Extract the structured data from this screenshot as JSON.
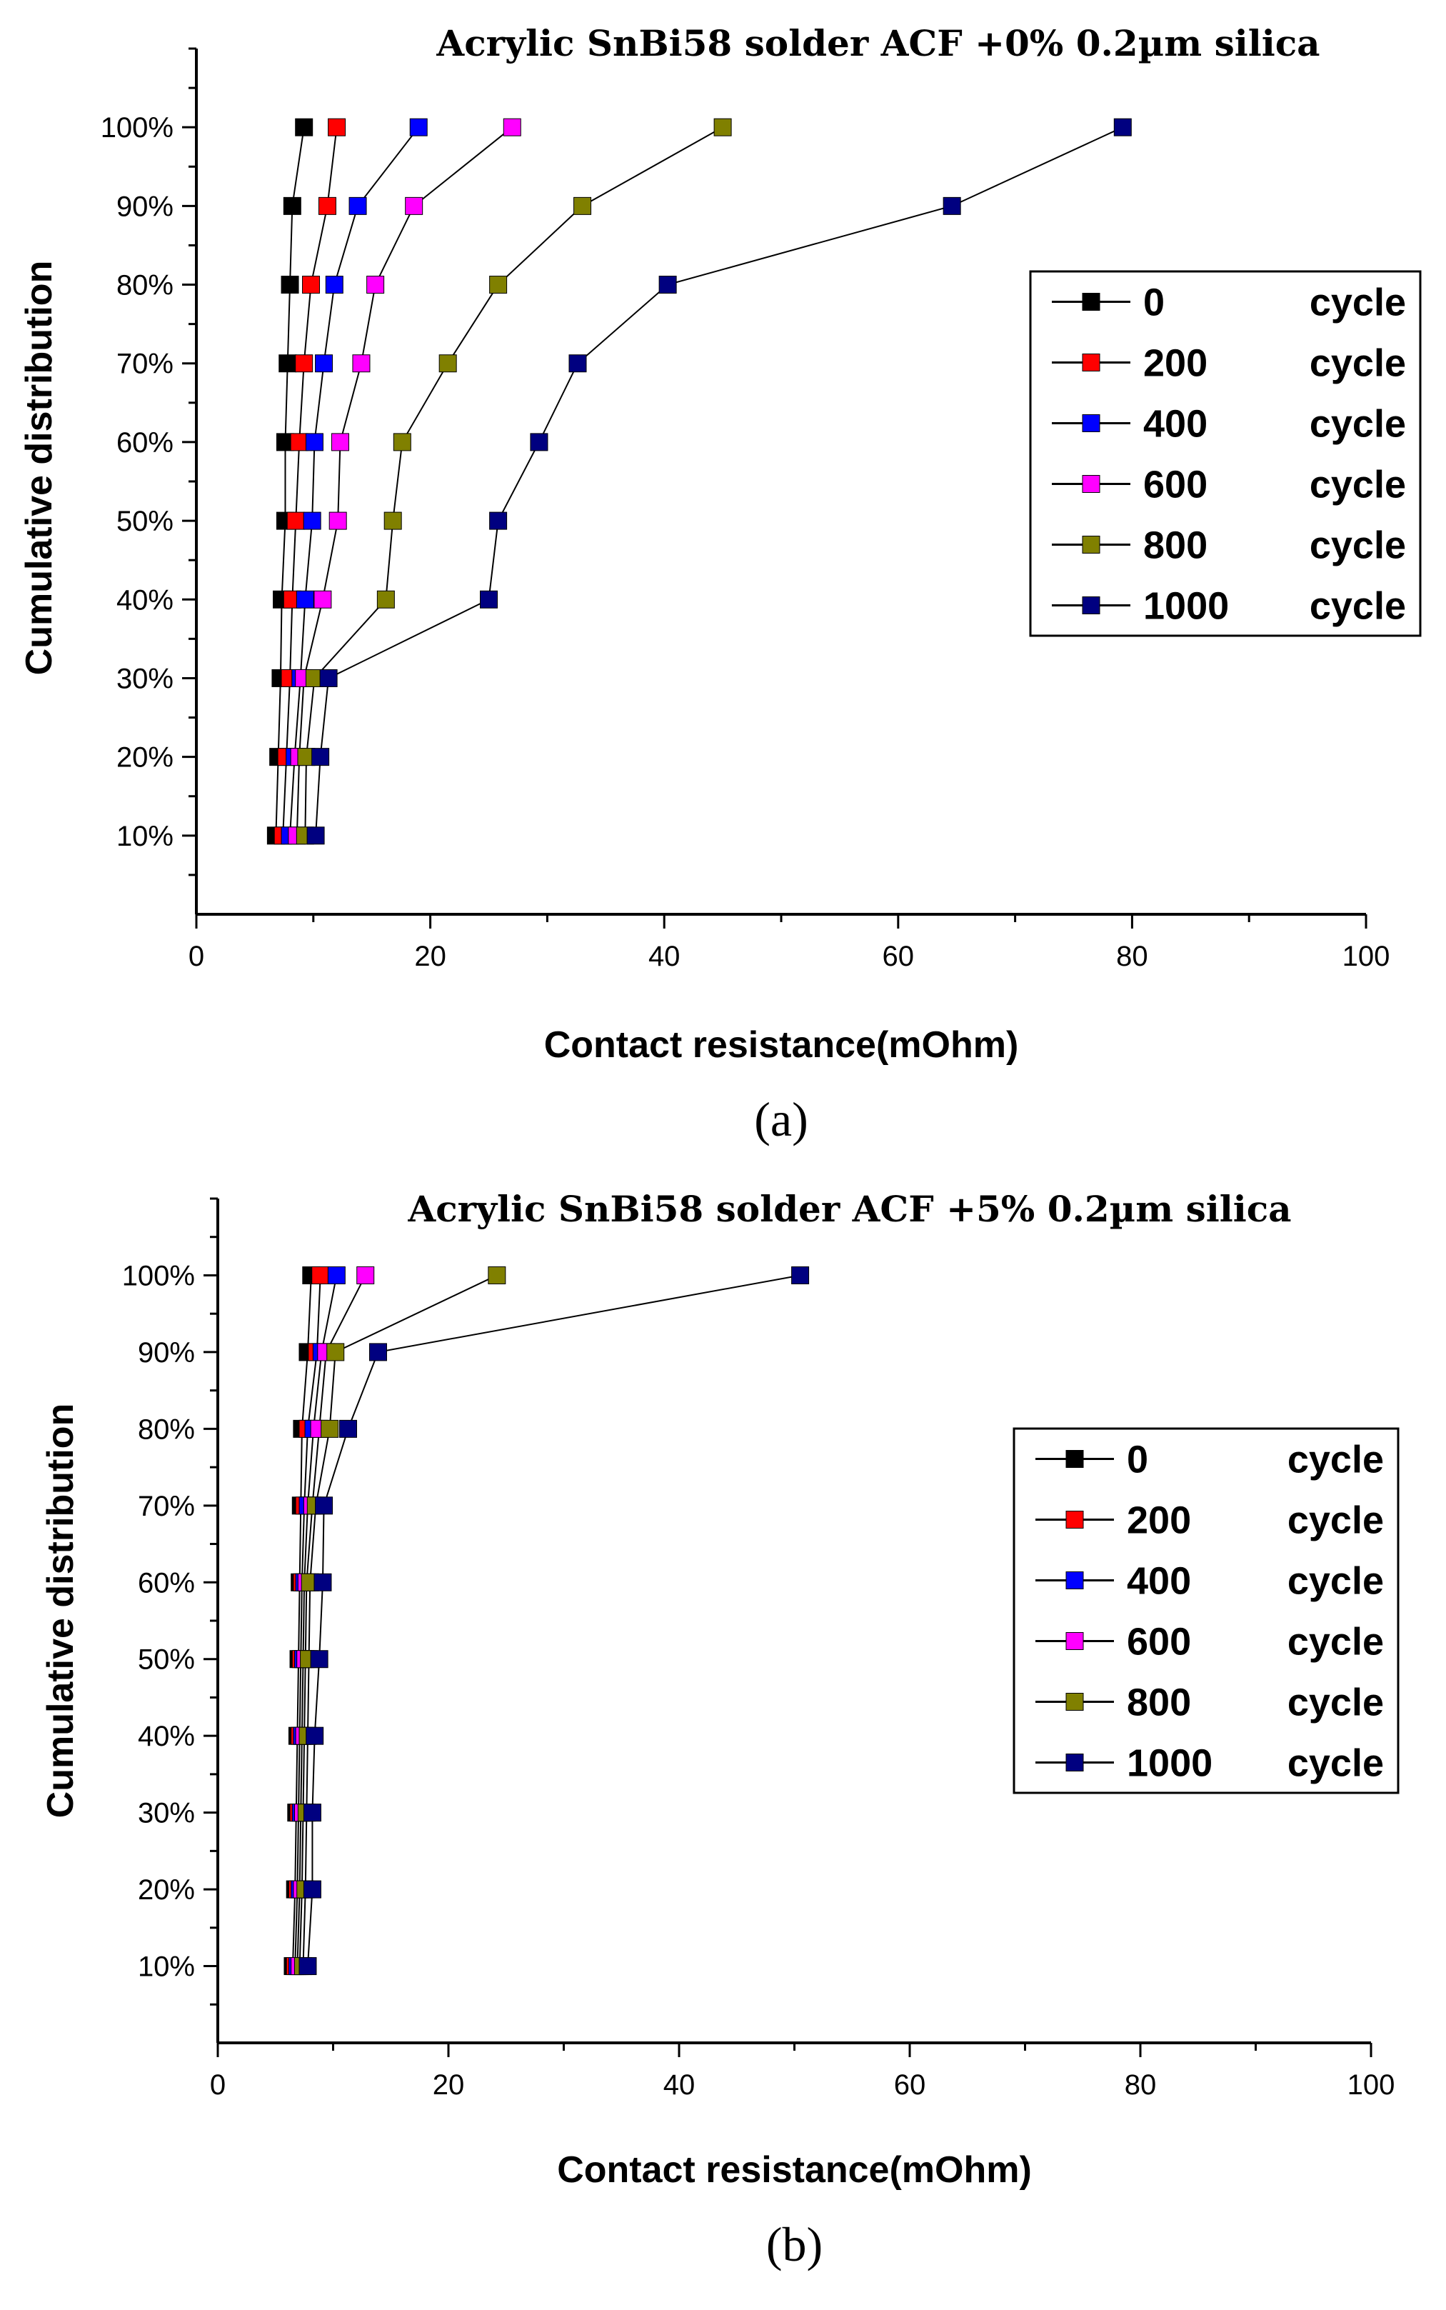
{
  "chart_data": [
    {
      "type": "line",
      "panel_label": "(a)",
      "title": "Acrylic SnBi58 solder ACF +0% 0.2µm silica",
      "xlabel": "Contact resistance(mOhm)",
      "ylabel": "Cumulative distribution",
      "xlim": [
        0,
        100
      ],
      "ylim": [
        0,
        110
      ],
      "xticks": [
        "0",
        "20",
        "40",
        "60",
        "80",
        "100"
      ],
      "yticks": [
        "10%",
        "20%",
        "30%",
        "40%",
        "50%",
        "60%",
        "70%",
        "80%",
        "90%",
        "100%"
      ],
      "legend_position": "right",
      "y": [
        10,
        20,
        30,
        40,
        50,
        60,
        70,
        80,
        90,
        100
      ],
      "series": [
        {
          "name": "0",
          "suffix": "cycle",
          "color": "#000000",
          "x": [
            6.8,
            7.0,
            7.2,
            7.3,
            7.6,
            7.6,
            7.8,
            8.0,
            8.2,
            9.2
          ]
        },
        {
          "name": "200",
          "suffix": "cycle",
          "color": "#ff0000",
          "x": [
            7.4,
            7.7,
            8.0,
            8.2,
            8.5,
            8.8,
            9.2,
            9.8,
            11.2,
            12.0
          ]
        },
        {
          "name": "400",
          "suffix": "cycle",
          "color": "#0000ff",
          "x": [
            8.0,
            8.4,
            8.9,
            9.3,
            9.9,
            10.1,
            10.9,
            11.8,
            13.8,
            19.0
          ]
        },
        {
          "name": "600",
          "suffix": "cycle",
          "color": "#ff00ff",
          "x": [
            8.6,
            8.8,
            9.2,
            10.8,
            12.1,
            12.3,
            14.1,
            15.3,
            18.6,
            27.0
          ]
        },
        {
          "name": "800",
          "suffix": "cycle",
          "color": "#808000",
          "x": [
            9.3,
            9.4,
            10.1,
            16.2,
            16.8,
            17.6,
            21.5,
            25.8,
            33.0,
            45.0
          ]
        },
        {
          "name": "1000",
          "suffix": "cycle",
          "color": "#000080",
          "x": [
            10.2,
            10.6,
            11.3,
            25.0,
            25.8,
            29.3,
            32.6,
            40.3,
            64.6,
            79.2
          ]
        }
      ]
    },
    {
      "type": "line",
      "panel_label": "(b)",
      "title": "Acrylic SnBi58 solder ACF +5% 0.2µm silica",
      "xlabel": "Contact resistance(mOhm)",
      "ylabel": "Cumulative distribution",
      "xlim": [
        0,
        100
      ],
      "ylim": [
        0,
        110
      ],
      "xticks": [
        "0",
        "20",
        "40",
        "60",
        "80",
        "100"
      ],
      "yticks": [
        "10%",
        "20%",
        "30%",
        "40%",
        "50%",
        "60%",
        "70%",
        "80%",
        "90%",
        "100%"
      ],
      "legend_position": "right",
      "y": [
        10,
        20,
        30,
        40,
        50,
        60,
        70,
        80,
        90,
        100
      ],
      "series": [
        {
          "name": "0",
          "suffix": "cycle",
          "color": "#000000",
          "x": [
            6.5,
            6.7,
            6.8,
            6.9,
            7.0,
            7.1,
            7.2,
            7.3,
            7.8,
            8.1
          ]
        },
        {
          "name": "200",
          "suffix": "cycle",
          "color": "#ff0000",
          "x": [
            6.7,
            6.9,
            7.0,
            7.1,
            7.2,
            7.3,
            7.5,
            7.8,
            8.6,
            8.9
          ]
        },
        {
          "name": "400",
          "suffix": "cycle",
          "color": "#0000ff",
          "x": [
            6.9,
            7.1,
            7.2,
            7.3,
            7.4,
            7.5,
            7.8,
            8.3,
            9.0,
            10.3
          ]
        },
        {
          "name": "600",
          "suffix": "cycle",
          "color": "#ff00ff",
          "x": [
            7.1,
            7.3,
            7.4,
            7.5,
            7.6,
            7.7,
            8.2,
            8.8,
            9.4,
            12.8
          ]
        },
        {
          "name": "800",
          "suffix": "cycle",
          "color": "#808000",
          "x": [
            7.4,
            7.6,
            7.7,
            7.8,
            7.9,
            8.0,
            8.5,
            9.7,
            10.2,
            24.2
          ]
        },
        {
          "name": "1000",
          "suffix": "cycle",
          "color": "#000080",
          "x": [
            7.8,
            8.2,
            8.2,
            8.4,
            8.8,
            9.1,
            9.2,
            11.3,
            13.9,
            50.5
          ]
        }
      ]
    }
  ]
}
